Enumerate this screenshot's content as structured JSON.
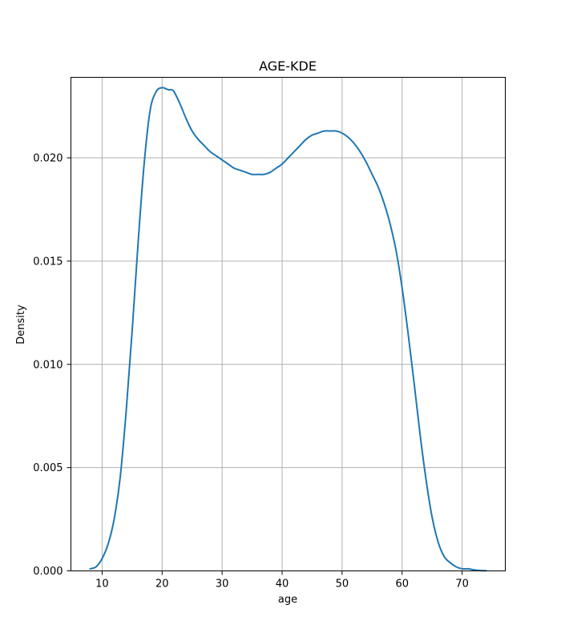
{
  "chart_data": {
    "type": "line",
    "title": "AGE-KDE",
    "xlabel": "age",
    "ylabel": "Density",
    "xlim": [
      4.8,
      77.2
    ],
    "ylim": [
      0,
      0.0239
    ],
    "x_ticks": [
      10,
      20,
      30,
      40,
      50,
      60,
      70
    ],
    "x_tick_labels": [
      "10",
      "20",
      "30",
      "40",
      "50",
      "60",
      "70"
    ],
    "y_ticks": [
      0,
      0.005,
      0.01,
      0.015,
      0.02
    ],
    "y_tick_labels": [
      "0.000",
      "0.005",
      "0.010",
      "0.015",
      "0.020"
    ],
    "grid": true,
    "series": [
      {
        "color": "#1f77b4",
        "x": [
          8,
          9,
          10,
          11,
          12,
          13,
          14,
          15,
          16,
          17,
          18,
          19,
          20,
          21,
          21.5,
          22,
          23,
          24,
          25,
          26,
          27,
          28,
          29,
          30,
          31,
          32,
          33,
          34,
          35,
          36,
          37,
          38,
          39,
          40,
          41,
          42,
          43,
          44,
          45,
          46,
          47,
          48,
          49,
          50,
          51,
          52,
          53,
          54,
          55,
          56,
          57,
          58,
          59,
          60,
          61,
          62,
          63,
          64,
          65,
          66,
          67,
          68,
          69,
          70,
          71,
          72,
          73,
          74
        ],
        "y": [
          0.0001,
          0.0002,
          0.0006,
          0.0013,
          0.0025,
          0.0045,
          0.0077,
          0.0116,
          0.0159,
          0.0197,
          0.0223,
          0.0232,
          0.0234,
          0.0233,
          0.0233,
          0.0232,
          0.0226,
          0.0219,
          0.0213,
          0.0209,
          0.0206,
          0.0203,
          0.0201,
          0.0199,
          0.0197,
          0.0195,
          0.0194,
          0.0193,
          0.0192,
          0.0192,
          0.0192,
          0.0193,
          0.0195,
          0.0197,
          0.02,
          0.0203,
          0.0206,
          0.0209,
          0.0211,
          0.0212,
          0.0213,
          0.0213,
          0.0213,
          0.0212,
          0.021,
          0.0207,
          0.0203,
          0.0198,
          0.0192,
          0.0186,
          0.0178,
          0.0168,
          0.0155,
          0.0137,
          0.0115,
          0.0091,
          0.0066,
          0.0044,
          0.0026,
          0.0014,
          0.0007,
          0.0004,
          0.0002,
          0.0001,
          0.0001,
          5e-05,
          2e-05,
          1e-05
        ]
      }
    ]
  }
}
